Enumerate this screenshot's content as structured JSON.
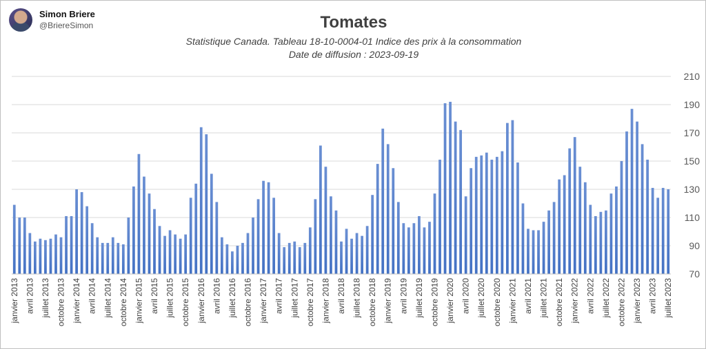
{
  "author": {
    "name": "Simon Briere",
    "handle": "@BriereSimon"
  },
  "chart_data": {
    "type": "bar",
    "title": "Tomates",
    "subtitle_line1": "Statistique Canada. Tableau 18-10-0004-01  Indice des prix à la consommation",
    "subtitle_line2": "Date de diffusion : 2023-09-19",
    "xlabel": "",
    "ylabel": "",
    "ylim": [
      70,
      210
    ],
    "yticks": [
      70,
      90,
      110,
      130,
      150,
      170,
      190,
      210
    ],
    "y_axis_side": "right",
    "grid": true,
    "bar_color": "#4472c4",
    "tick_labels": [
      "janvier 2013",
      "avril 2013",
      "juillet 2013",
      "octobre 2013",
      "janvier 2014",
      "avril 2014",
      "juillet 2014",
      "octobre 2014",
      "janvier 2015",
      "avril 2015",
      "juillet 2015",
      "octobre 2015",
      "janvier 2016",
      "avril 2016",
      "juillet 2016",
      "octobre 2016",
      "janvier 2017",
      "avril 2017",
      "juillet 2017",
      "octobre 2017",
      "janvier 2018",
      "avril 2018",
      "juillet 2018",
      "octobre 2018",
      "janvier 2019",
      "avril 2019",
      "juillet 2019",
      "octobre 2019",
      "janvier 2020",
      "avril 2020",
      "juillet 2020",
      "octobre 2020",
      "janvier 2021",
      "avril 2021",
      "juillet 2021",
      "octobre 2021",
      "janvier 2022",
      "avril 2022",
      "juillet 2022",
      "octobre 2022",
      "janvier 2023",
      "avril 2023",
      "juillet 2023"
    ],
    "tick_every": 3,
    "values": [
      119,
      110,
      110,
      99,
      93,
      95,
      94,
      95,
      98,
      96,
      111,
      111,
      130,
      128,
      118,
      106,
      96,
      92,
      92,
      96,
      92,
      91,
      110,
      132,
      155,
      139,
      127,
      116,
      104,
      97,
      101,
      98,
      95,
      98,
      124,
      134,
      174,
      169,
      141,
      121,
      96,
      91,
      86,
      90,
      92,
      99,
      110,
      123,
      136,
      135,
      124,
      99,
      89,
      92,
      93,
      89,
      92,
      103,
      123,
      161,
      146,
      125,
      115,
      93,
      102,
      95,
      99,
      97,
      104,
      126,
      148,
      173,
      162,
      145,
      121,
      106,
      103,
      106,
      111,
      103,
      107,
      127,
      151,
      191,
      192,
      178,
      172,
      125,
      145,
      153,
      154,
      156,
      151,
      153,
      157,
      177,
      179,
      149,
      120,
      102,
      101,
      101,
      107,
      115,
      121,
      137,
      140,
      159,
      167,
      146,
      135,
      119,
      111,
      114,
      115,
      127,
      132,
      150,
      171,
      187,
      178,
      162,
      151,
      131,
      124,
      131,
      130
    ]
  }
}
